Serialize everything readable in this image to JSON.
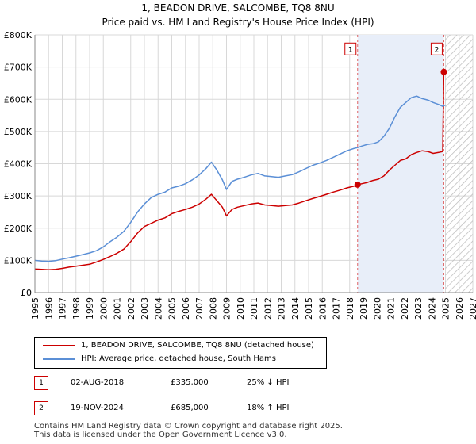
{
  "title": "1, BEADON DRIVE, SALCOMBE, TQ8 8NU",
  "subtitle": "Price paid vs. HM Land Registry's House Price Index (HPI)",
  "colors": {
    "property": "#cc0000",
    "hpi": "#5b8fd6",
    "shade": "#e8eef9",
    "grid": "#d8d8d8"
  },
  "chart_data": {
    "type": "line",
    "title": "1, BEADON DRIVE, SALCOMBE, TQ8 8NU",
    "subtitle": "Price paid vs. HM Land Registry's House Price Index (HPI)",
    "xlim": [
      1995,
      2027
    ],
    "ylim": [
      0,
      800000
    ],
    "x_ticks": [
      "1995",
      "1996",
      "1997",
      "1998",
      "1999",
      "2000",
      "2001",
      "2002",
      "2003",
      "2004",
      "2005",
      "2006",
      "2007",
      "2008",
      "2009",
      "2010",
      "2011",
      "2012",
      "2013",
      "2014",
      "2015",
      "2016",
      "2017",
      "2018",
      "2019",
      "2020",
      "2021",
      "2022",
      "2023",
      "2024",
      "2025",
      "2026",
      "2027"
    ],
    "y_ticks": [
      {
        "value": 0,
        "label": "£0"
      },
      {
        "value": 100000,
        "label": "£100K"
      },
      {
        "value": 200000,
        "label": "£200K"
      },
      {
        "value": 300000,
        "label": "£300K"
      },
      {
        "value": 400000,
        "label": "£400K"
      },
      {
        "value": 500000,
        "label": "£500K"
      },
      {
        "value": 600000,
        "label": "£600K"
      },
      {
        "value": 700000,
        "label": "£700K"
      },
      {
        "value": 800000,
        "label": "£800K"
      }
    ],
    "shaded_region": [
      2018.58,
      2024.88
    ],
    "hatched_region": [
      2025.0,
      2027
    ],
    "series": [
      {
        "name": "1, BEADON DRIVE, SALCOMBE, TQ8 8NU (detached house)",
        "x": [
          1995.0,
          1995.5,
          1996.0,
          1996.5,
          1997.0,
          1997.5,
          1998.0,
          1998.5,
          1999.0,
          1999.5,
          2000.0,
          2000.5,
          2001.0,
          2001.5,
          2002.0,
          2002.5,
          2003.0,
          2003.5,
          2004.0,
          2004.5,
          2005.0,
          2005.5,
          2006.0,
          2006.5,
          2007.0,
          2007.5,
          2007.9,
          2008.3,
          2008.7,
          2009.0,
          2009.4,
          2009.8,
          2010.3,
          2010.8,
          2011.3,
          2011.8,
          2012.3,
          2012.8,
          2013.3,
          2013.8,
          2014.3,
          2014.8,
          2015.3,
          2015.8,
          2016.3,
          2016.8,
          2017.3,
          2017.8,
          2018.3,
          2018.58,
          2018.9,
          2019.3,
          2019.7,
          2020.1,
          2020.5,
          2020.9,
          2021.3,
          2021.7,
          2022.1,
          2022.5,
          2022.9,
          2023.3,
          2023.7,
          2024.1,
          2024.5,
          2024.8,
          2024.88,
          2025.0
        ],
        "y": [
          73000,
          72000,
          71000,
          72000,
          75000,
          79000,
          82000,
          85000,
          88000,
          95000,
          103000,
          112000,
          122000,
          135000,
          158000,
          185000,
          205000,
          215000,
          225000,
          232000,
          245000,
          252000,
          258000,
          265000,
          275000,
          290000,
          305000,
          285000,
          265000,
          238000,
          258000,
          265000,
          270000,
          275000,
          278000,
          272000,
          270000,
          268000,
          270000,
          272000,
          278000,
          285000,
          292000,
          298000,
          305000,
          312000,
          318000,
          325000,
          330000,
          335000,
          338000,
          342000,
          348000,
          352000,
          362000,
          380000,
          395000,
          410000,
          415000,
          428000,
          435000,
          440000,
          438000,
          432000,
          435000,
          438000,
          685000,
          690000
        ]
      },
      {
        "name": "HPI: Average price, detached house, South Hams",
        "x": [
          1995.0,
          1995.5,
          1996.0,
          1996.5,
          1997.0,
          1997.5,
          1998.0,
          1998.5,
          1999.0,
          1999.5,
          2000.0,
          2000.5,
          2001.0,
          2001.5,
          2002.0,
          2002.5,
          2003.0,
          2003.5,
          2004.0,
          2004.5,
          2005.0,
          2005.5,
          2006.0,
          2006.5,
          2007.0,
          2007.5,
          2007.9,
          2008.3,
          2008.7,
          2009.0,
          2009.4,
          2009.8,
          2010.3,
          2010.8,
          2011.3,
          2011.8,
          2012.3,
          2012.8,
          2013.3,
          2013.8,
          2014.3,
          2014.8,
          2015.3,
          2015.8,
          2016.3,
          2016.8,
          2017.3,
          2017.8,
          2018.3,
          2018.58,
          2018.9,
          2019.3,
          2019.7,
          2020.1,
          2020.5,
          2020.9,
          2021.3,
          2021.7,
          2022.1,
          2022.5,
          2022.9,
          2023.3,
          2023.7,
          2024.1,
          2024.5,
          2024.8,
          2024.88,
          2025.0
        ],
        "y": [
          100000,
          98000,
          97000,
          99000,
          104000,
          108000,
          113000,
          118000,
          123000,
          130000,
          142000,
          158000,
          172000,
          190000,
          218000,
          250000,
          275000,
          295000,
          305000,
          312000,
          325000,
          330000,
          338000,
          350000,
          365000,
          385000,
          405000,
          380000,
          350000,
          320000,
          345000,
          352000,
          358000,
          365000,
          370000,
          362000,
          360000,
          358000,
          362000,
          366000,
          375000,
          385000,
          395000,
          402000,
          410000,
          420000,
          430000,
          440000,
          447000,
          450000,
          455000,
          460000,
          462000,
          468000,
          485000,
          510000,
          545000,
          575000,
          590000,
          605000,
          610000,
          602000,
          598000,
          590000,
          584000,
          578000,
          580000,
          582000
        ]
      }
    ],
    "sales": [
      {
        "id": "1",
        "date": "02-AUG-2018",
        "price": "£335,000",
        "hpi": "25% ↓ HPI",
        "x": 2018.58,
        "y": 335000
      },
      {
        "id": "2",
        "date": "19-NOV-2024",
        "price": "£685,000",
        "hpi": "18% ↑ HPI",
        "x": 2024.88,
        "y": 685000
      }
    ]
  },
  "legend": {
    "property_label": "1, BEADON DRIVE, SALCOMBE, TQ8 8NU (detached house)",
    "hpi_label": "HPI: Average price, detached house, South Hams"
  },
  "footer": {
    "line1": "Contains HM Land Registry data © Crown copyright and database right 2025.",
    "line2": "This data is licensed under the Open Government Licence v3.0."
  }
}
